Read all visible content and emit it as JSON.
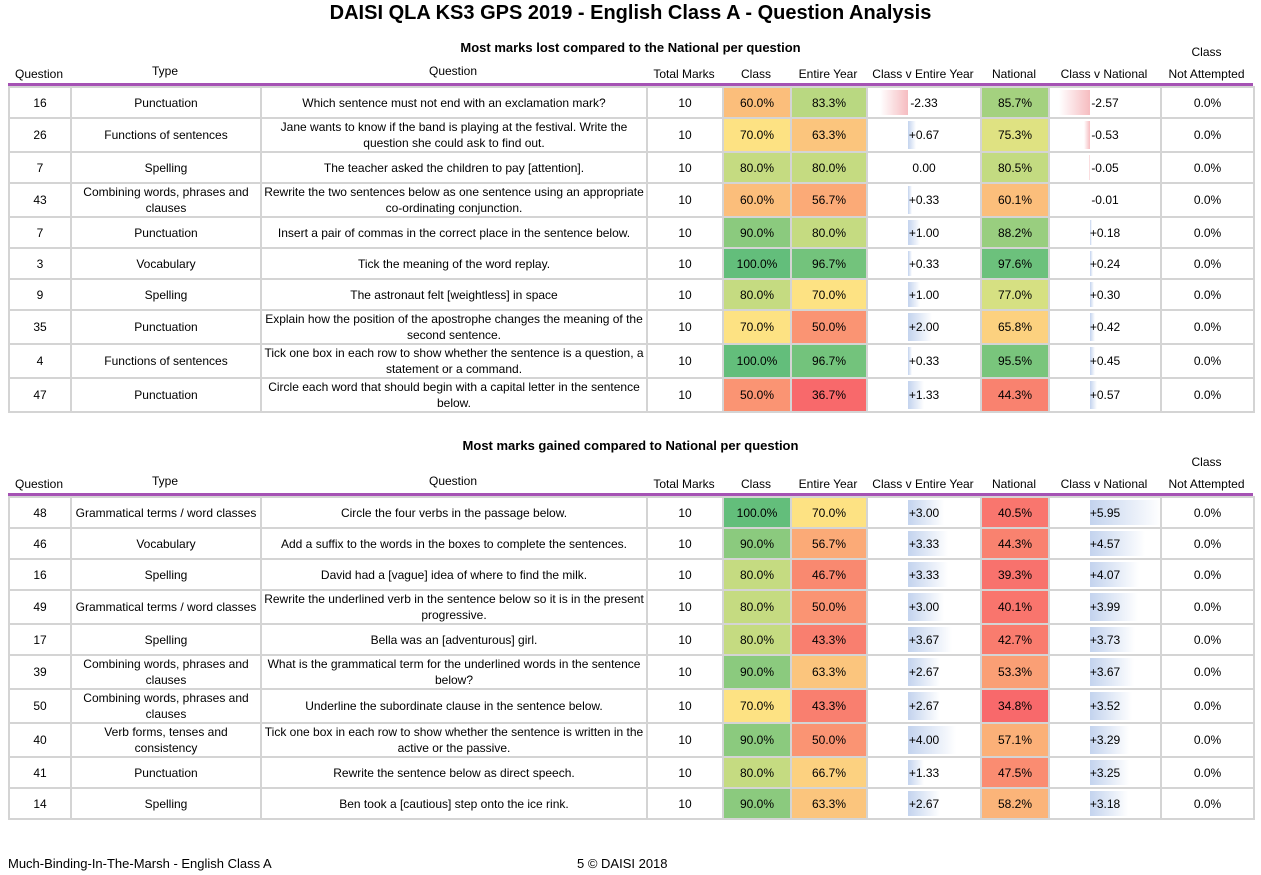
{
  "title": "DAISI QLA KS3 GPS 2019 - English Class A - Question Analysis",
  "headers": {
    "question": "Question",
    "type": "Type",
    "question_text": "Question",
    "total_marks": "Total Marks",
    "class": "Class",
    "entire_year": "Entire Year",
    "class_v_entire_year": "Class v Entire Year",
    "national": "National",
    "class_v_national": "Class v National",
    "not_attempted_1": "Class",
    "not_attempted_2": "Not Attempted"
  },
  "lost": {
    "title": "Most marks lost compared to the National per question",
    "rows": [
      {
        "q": "16",
        "type": "Punctuation",
        "text": "Which sentence must not end with an exclamation mark?",
        "marks": "10",
        "cls": "60.0%",
        "year": "83.3%",
        "cve": "-2.33",
        "nat": "85.7%",
        "cvn": "-2.57",
        "na": "0.0%",
        "cls_bg": "#fbbe7b",
        "year_bg": "#b9d881",
        "nat_bg": "#a4d17f",
        "cve_v": -2.33,
        "cvn_v": -2.57
      },
      {
        "q": "26",
        "type": "Functions of sentences",
        "text": "Jane wants to know if the band is playing at the festival. Write the question she could ask to find out.",
        "marks": "10",
        "cls": "70.0%",
        "year": "63.3%",
        "cve": "+0.67",
        "nat": "75.3%",
        "cvn": "-0.53",
        "na": "0.0%",
        "cls_bg": "#fde283",
        "year_bg": "#fbc57d",
        "nat_bg": "#dfe282",
        "cve_v": 0.67,
        "cvn_v": -0.53
      },
      {
        "q": "7",
        "type": "Spelling",
        "text": "The teacher asked the children to pay [attention].",
        "marks": "10",
        "cls": "80.0%",
        "year": "80.0%",
        "cve": "0.00",
        "nat": "80.5%",
        "cvn": "-0.05",
        "na": "0.0%",
        "cls_bg": "#c5db81",
        "year_bg": "#c5db81",
        "nat_bg": "#c3db81",
        "cve_v": 0,
        "cvn_v": -0.05
      },
      {
        "q": "43",
        "type": "Combining words, phrases and clauses",
        "text": "Rewrite the two sentences below as one sentence using an appropriate co-ordinating conjunction.",
        "marks": "10",
        "cls": "60.0%",
        "year": "56.7%",
        "cve": "+0.33",
        "nat": "60.1%",
        "cvn": "-0.01",
        "na": "0.0%",
        "cls_bg": "#fbbe7b",
        "year_bg": "#fbaa77",
        "nat_bg": "#fbbe7b",
        "cve_v": 0.33,
        "cvn_v": -0.01
      },
      {
        "q": "7",
        "type": "Punctuation",
        "text": "Insert a pair of commas in the correct place in the sentence below.",
        "marks": "10",
        "cls": "90.0%",
        "year": "80.0%",
        "cve": "+1.00",
        "nat": "88.2%",
        "cvn": "+0.18",
        "na": "0.0%",
        "cls_bg": "#8bca7e",
        "year_bg": "#c5db81",
        "nat_bg": "#99ce7f",
        "cve_v": 1,
        "cvn_v": 0.18
      },
      {
        "q": "3",
        "type": "Vocabulary",
        "text": "Tick the meaning of the word replay.",
        "marks": "10",
        "cls": "100.0%",
        "year": "96.7%",
        "cve": "+0.33",
        "nat": "97.6%",
        "cvn": "+0.24",
        "na": "0.0%",
        "cls_bg": "#63be7b",
        "year_bg": "#73c37c",
        "nat_bg": "#6cc17c",
        "cve_v": 0.33,
        "cvn_v": 0.24
      },
      {
        "q": "9",
        "type": "Spelling",
        "text": "The astronaut felt [weightless] in space",
        "marks": "10",
        "cls": "80.0%",
        "year": "70.0%",
        "cve": "+1.00",
        "nat": "77.0%",
        "cvn": "+0.30",
        "na": "0.0%",
        "cls_bg": "#c5db81",
        "year_bg": "#fde283",
        "nat_bg": "#d6e082",
        "cve_v": 1,
        "cvn_v": 0.3
      },
      {
        "q": "35",
        "type": "Punctuation",
        "text": "Explain how the position of the apostrophe changes the meaning of the second sentence.",
        "marks": "10",
        "cls": "70.0%",
        "year": "50.0%",
        "cve": "+2.00",
        "nat": "65.8%",
        "cvn": "+0.42",
        "na": "0.0%",
        "cls_bg": "#fde283",
        "year_bg": "#fa9473",
        "nat_bg": "#fcd17f",
        "cve_v": 2,
        "cvn_v": 0.42
      },
      {
        "q": "4",
        "type": "Functions of sentences",
        "text": "Tick one box in each row to show whether the sentence is a question, a statement or a command.",
        "marks": "10",
        "cls": "100.0%",
        "year": "96.7%",
        "cve": "+0.33",
        "nat": "95.5%",
        "cvn": "+0.45",
        "na": "0.0%",
        "cls_bg": "#63be7b",
        "year_bg": "#73c37c",
        "nat_bg": "#79c57c",
        "cve_v": 0.33,
        "cvn_v": 0.45
      },
      {
        "q": "47",
        "type": "Punctuation",
        "text": "Circle each word that should begin with a capital letter in the sentence below.",
        "marks": "10",
        "cls": "50.0%",
        "year": "36.7%",
        "cve": "+1.33",
        "nat": "44.3%",
        "cvn": "+0.57",
        "na": "0.0%",
        "cls_bg": "#fa9473",
        "year_bg": "#f8696b",
        "nat_bg": "#f9826f",
        "cve_v": 1.33,
        "cvn_v": 0.57
      }
    ]
  },
  "gained": {
    "title": "Most marks gained compared to National per question",
    "rows": [
      {
        "q": "48",
        "type": "Grammatical terms / word classes",
        "text": "Circle the four verbs in the passage below.",
        "marks": "10",
        "cls": "100.0%",
        "year": "70.0%",
        "cve": "+3.00",
        "nat": "40.5%",
        "cvn": "+5.95",
        "na": "0.0%",
        "cls_bg": "#63be7b",
        "year_bg": "#fde283",
        "nat_bg": "#f9766e",
        "cve_v": 3,
        "cvn_v": 5.95
      },
      {
        "q": "46",
        "type": "Vocabulary",
        "text": "Add a suffix to the words in the boxes to complete the sentences.",
        "marks": "10",
        "cls": "90.0%",
        "year": "56.7%",
        "cve": "+3.33",
        "nat": "44.3%",
        "cvn": "+4.57",
        "na": "0.0%",
        "cls_bg": "#8bca7e",
        "year_bg": "#fbaa77",
        "nat_bg": "#f9826f",
        "cve_v": 3.33,
        "cvn_v": 4.57
      },
      {
        "q": "16",
        "type": "Spelling",
        "text": "David had a [vague] idea of where to find the milk.",
        "marks": "10",
        "cls": "80.0%",
        "year": "46.7%",
        "cve": "+3.33",
        "nat": "39.3%",
        "cvn": "+4.07",
        "na": "0.0%",
        "cls_bg": "#c5db81",
        "year_bg": "#f98970",
        "nat_bg": "#f8726d",
        "cve_v": 3.33,
        "cvn_v": 4.07
      },
      {
        "q": "49",
        "type": "Grammatical terms / word classes",
        "text": "Rewrite the underlined verb in the sentence below so it is in the present progressive.",
        "marks": "10",
        "cls": "80.0%",
        "year": "50.0%",
        "cve": "+3.00",
        "nat": "40.1%",
        "cvn": "+3.99",
        "na": "0.0%",
        "cls_bg": "#c5db81",
        "year_bg": "#fa9473",
        "nat_bg": "#f9756d",
        "cve_v": 3,
        "cvn_v": 3.99
      },
      {
        "q": "17",
        "type": "Spelling",
        "text": "Bella was an [adventurous] girl.",
        "marks": "10",
        "cls": "80.0%",
        "year": "43.3%",
        "cve": "+3.67",
        "nat": "42.7%",
        "cvn": "+3.73",
        "na": "0.0%",
        "cls_bg": "#c5db81",
        "year_bg": "#f97f6f",
        "nat_bg": "#f97c6e",
        "cve_v": 3.67,
        "cvn_v": 3.73
      },
      {
        "q": "39",
        "type": "Combining words, phrases and clauses",
        "text": "What is the grammatical term for the underlined words in the sentence below?",
        "marks": "10",
        "cls": "90.0%",
        "year": "63.3%",
        "cve": "+2.67",
        "nat": "53.3%",
        "cvn": "+3.67",
        "na": "0.0%",
        "cls_bg": "#8bca7e",
        "year_bg": "#fbc57d",
        "nat_bg": "#fa9f75",
        "cve_v": 2.67,
        "cvn_v": 3.67
      },
      {
        "q": "50",
        "type": "Combining words, phrases and clauses",
        "text": "Underline the subordinate clause in the sentence below.",
        "marks": "10",
        "cls": "70.0%",
        "year": "43.3%",
        "cve": "+2.67",
        "nat": "34.8%",
        "cvn": "+3.52",
        "na": "0.0%",
        "cls_bg": "#fde283",
        "year_bg": "#f97f6f",
        "nat_bg": "#f8696b",
        "cve_v": 2.67,
        "cvn_v": 3.52
      },
      {
        "q": "40",
        "type": "Verb forms, tenses and consistency",
        "text": "Tick one box in each row to show whether the sentence is written in the active or the passive.",
        "marks": "10",
        "cls": "90.0%",
        "year": "50.0%",
        "cve": "+4.00",
        "nat": "57.1%",
        "cvn": "+3.29",
        "na": "0.0%",
        "cls_bg": "#8bca7e",
        "year_bg": "#fa9473",
        "nat_bg": "#fbb078",
        "cve_v": 4,
        "cvn_v": 3.29
      },
      {
        "q": "41",
        "type": "Punctuation",
        "text": "Rewrite the sentence below as direct speech.",
        "marks": "10",
        "cls": "80.0%",
        "year": "66.7%",
        "cve": "+1.33",
        "nat": "47.5%",
        "cvn": "+3.25",
        "na": "0.0%",
        "cls_bg": "#c5db81",
        "year_bg": "#fcd180",
        "nat_bg": "#fa8c71",
        "cve_v": 1.33,
        "cvn_v": 3.25
      },
      {
        "q": "14",
        "type": "Spelling",
        "text": "Ben took a [cautious] step onto the ice rink.",
        "marks": "10",
        "cls": "90.0%",
        "year": "63.3%",
        "cve": "+2.67",
        "nat": "58.2%",
        "cvn": "+3.18",
        "na": "0.0%",
        "cls_bg": "#8bca7e",
        "year_bg": "#fbc57d",
        "nat_bg": "#fbb479",
        "cve_v": 2.67,
        "cvn_v": 3.18
      }
    ]
  },
  "footer": {
    "school": "Much-Binding-In-The-Marsh - English Class A",
    "page": "5 © DAISI 2018"
  }
}
